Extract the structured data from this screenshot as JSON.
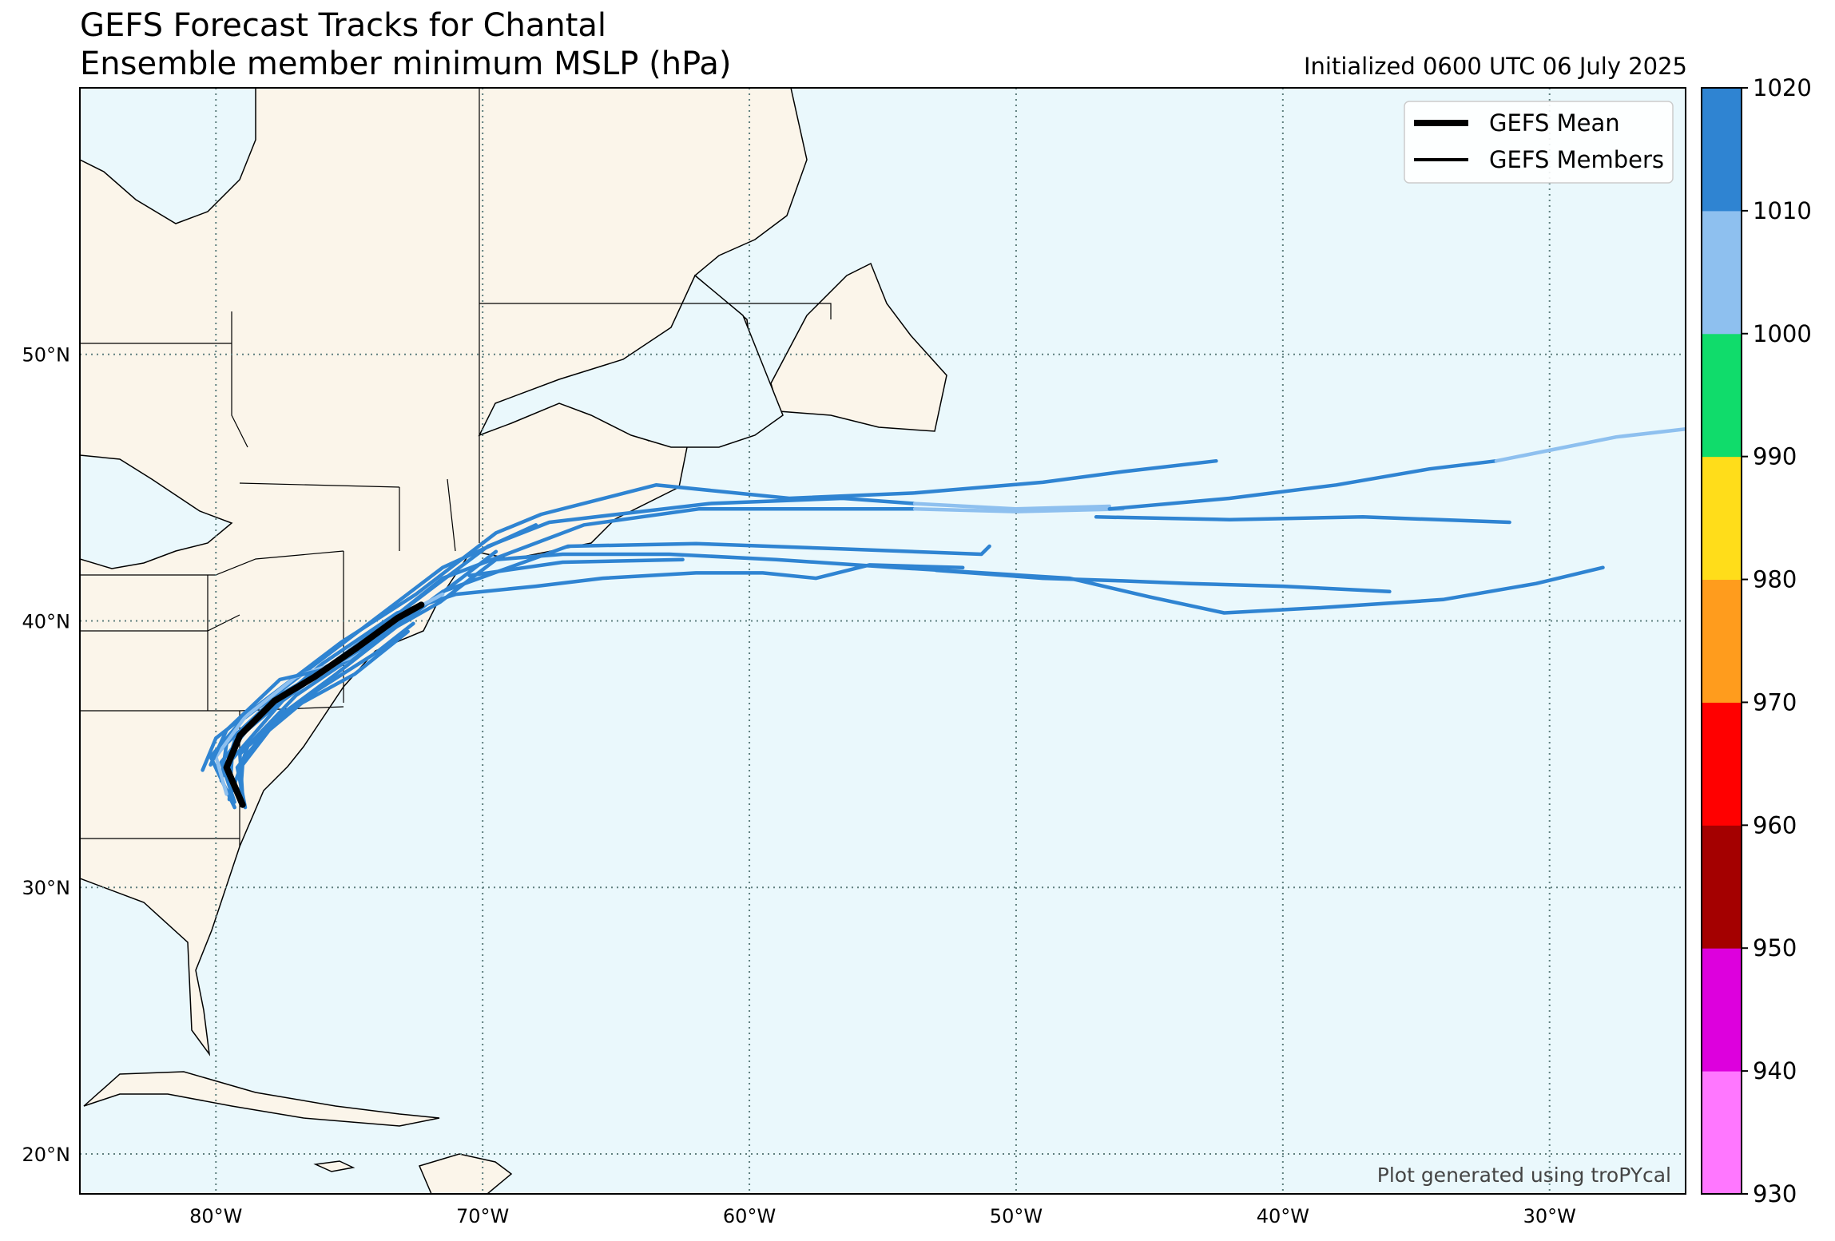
{
  "title": "GEFS Forecast Tracks for Chantal",
  "subtitle": "Ensemble member minimum MSLP (hPa)",
  "init_text": "Initialized 0600 UTC 06 July 2025",
  "credit": "Plot generated using troPYcal",
  "legend": [
    {
      "label": "GEFS Mean"
    },
    {
      "label": "GEFS Members"
    }
  ],
  "colors": {
    "ocean": "#eaf8fc",
    "land": "#fbf5ea",
    "mean_track": "#000000",
    "member_track": "#2f84d2",
    "member_track_weak": "#8ec0ef"
  },
  "map": {
    "lon_range": [
      -85.1,
      -24.9
    ],
    "lat_range": [
      18.5,
      60.0
    ],
    "lat_ticks": [
      {
        "value": 50,
        "label": "50°N"
      },
      {
        "value": 40,
        "label": "40°N"
      },
      {
        "value": 30,
        "label": "30°N"
      },
      {
        "value": 20,
        "label": "20°N"
      }
    ],
    "lon_ticks": [
      {
        "value": -80,
        "label": "80°W"
      },
      {
        "value": -70,
        "label": "70°W"
      },
      {
        "value": -60,
        "label": "60°W"
      },
      {
        "value": -50,
        "label": "50°W"
      },
      {
        "value": -40,
        "label": "40°W"
      },
      {
        "value": -30,
        "label": "30°W"
      }
    ],
    "gridlines": true
  },
  "colorbar": {
    "bounds": [
      930,
      940,
      950,
      960,
      970,
      980,
      990,
      1000,
      1010,
      1020
    ],
    "labels": [
      "1020",
      "1010",
      "1000",
      "990",
      "980",
      "970",
      "960",
      "950",
      "940",
      "930"
    ],
    "colors": [
      "#ff77ff",
      "#dd00dd",
      "#a40000",
      "#ff0000",
      "#ff9c1d",
      "#ffdd1a",
      "#10dc6b",
      "#8ec0ef",
      "#2f84d2"
    ]
  },
  "chart_data": {
    "type": "map-tracks",
    "units": "hPa",
    "mean_track": [
      [
        -79.0,
        33.1
      ],
      [
        -79.6,
        34.5
      ],
      [
        -79.1,
        35.7
      ],
      [
        -77.8,
        37.0
      ],
      [
        -76.3,
        37.9
      ],
      [
        -74.7,
        39.0
      ],
      [
        -73.2,
        40.1
      ],
      [
        -72.3,
        40.6
      ]
    ],
    "members": [
      {
        "points": [
          [
            -79.3,
            33.0
          ],
          [
            -80.2,
            34.9
          ],
          [
            -79.0,
            36.3
          ],
          [
            -76.5,
            38.2
          ],
          [
            -74.0,
            40.1
          ],
          [
            -71.5,
            42.0
          ],
          [
            -68.0,
            43.6
          ]
        ],
        "color": "#2f84d2"
      },
      {
        "points": [
          [
            -78.9,
            33.0
          ],
          [
            -79.2,
            34.5
          ],
          [
            -77.8,
            36.3
          ],
          [
            -75.5,
            38.0
          ],
          [
            -73.2,
            39.8
          ],
          [
            -70.8,
            41.6
          ],
          [
            -69.5,
            42.6
          ]
        ],
        "color": "#2f84d2"
      },
      {
        "points": [
          [
            -80.5,
            34.4
          ],
          [
            -80.0,
            35.6
          ],
          [
            -78.2,
            37.0
          ],
          [
            -75.3,
            39.2
          ],
          [
            -72.5,
            41.0
          ],
          [
            -69.5,
            43.3
          ],
          [
            -67.8,
            44.0
          ],
          [
            -63.5,
            45.1
          ],
          [
            -58.5,
            44.6
          ],
          [
            -53.8,
            44.8
          ],
          [
            -49.0,
            45.2
          ],
          [
            -46.0,
            45.6
          ],
          [
            -42.5,
            46.0
          ]
        ],
        "color": "#2f84d2"
      },
      {
        "points": [
          [
            -79.7,
            34.2
          ],
          [
            -79.3,
            35.5
          ],
          [
            -77.3,
            37.2
          ],
          [
            -74.3,
            39.4
          ],
          [
            -71.8,
            41.3
          ],
          [
            -69.8,
            42.8
          ],
          [
            -67.5,
            43.7
          ],
          [
            -61.5,
            44.4
          ],
          [
            -56.5,
            44.6
          ],
          [
            -53.8,
            44.4
          ]
        ],
        "color": "#2f84d2"
      },
      {
        "points": [
          [
            -53.8,
            44.4
          ],
          [
            -50.0,
            44.2
          ],
          [
            -46.5,
            44.3
          ]
        ],
        "color": "#8ec0ef"
      },
      {
        "points": [
          [
            -79.5,
            33.3
          ],
          [
            -79.4,
            34.8
          ],
          [
            -77.5,
            37.0
          ],
          [
            -74.0,
            39.6
          ],
          [
            -71.5,
            41.6
          ],
          [
            -66.2,
            43.6
          ],
          [
            -61.9,
            44.2
          ],
          [
            -53.8,
            44.2
          ]
        ],
        "color": "#2f84d2"
      },
      {
        "points": [
          [
            -53.8,
            44.2
          ],
          [
            -50.0,
            44.1
          ],
          [
            -46.0,
            44.2
          ]
        ],
        "color": "#8ec0ef"
      },
      {
        "points": [
          [
            -46.5,
            44.2
          ],
          [
            -42.0,
            44.6
          ],
          [
            -38.0,
            45.1
          ],
          [
            -34.5,
            45.7
          ],
          [
            -32.0,
            46.0
          ]
        ],
        "color": "#2f84d2"
      },
      {
        "points": [
          [
            -32.0,
            46.0
          ],
          [
            -29.5,
            46.5
          ],
          [
            -27.5,
            46.9
          ],
          [
            -24.9,
            47.2
          ]
        ],
        "color": "#8ec0ef"
      },
      {
        "points": [
          [
            -79.0,
            33.4
          ],
          [
            -79.1,
            35.0
          ],
          [
            -77.0,
            37.2
          ],
          [
            -74.2,
            39.1
          ],
          [
            -71.5,
            41.1
          ],
          [
            -66.8,
            42.8
          ],
          [
            -62.0,
            42.9
          ],
          [
            -56.5,
            42.7
          ],
          [
            -51.3,
            42.5
          ],
          [
            -51.0,
            42.8
          ]
        ],
        "color": "#2f84d2"
      },
      {
        "points": [
          [
            -79.8,
            34.0
          ],
          [
            -79.6,
            35.4
          ],
          [
            -77.8,
            37.1
          ],
          [
            -74.6,
            39.0
          ],
          [
            -71.6,
            40.7
          ],
          [
            -69.5,
            42.3
          ],
          [
            -67.0,
            42.5
          ],
          [
            -63.0,
            42.5
          ],
          [
            -59.0,
            42.3
          ],
          [
            -54.5,
            42.0
          ],
          [
            -48.0,
            41.6
          ],
          [
            -45.0,
            40.9
          ],
          [
            -42.2,
            40.3
          ],
          [
            -38.5,
            40.5
          ],
          [
            -34.0,
            40.8
          ],
          [
            -30.5,
            41.4
          ],
          [
            -28.0,
            42.0
          ]
        ],
        "color": "#2f84d2"
      },
      {
        "points": [
          [
            -79.3,
            33.2
          ],
          [
            -79.8,
            34.7
          ],
          [
            -78.6,
            36.2
          ],
          [
            -76.0,
            38.4
          ],
          [
            -73.2,
            40.3
          ],
          [
            -71.0,
            41.0
          ],
          [
            -68.0,
            41.3
          ],
          [
            -65.5,
            41.6
          ],
          [
            -62.0,
            41.8
          ],
          [
            -59.5,
            41.8
          ],
          [
            -57.5,
            41.6
          ],
          [
            -55.5,
            42.1
          ],
          [
            -52.0,
            42.0
          ]
        ],
        "color": "#2f84d2"
      },
      {
        "points": [
          [
            -53.0,
            41.9
          ],
          [
            -49.0,
            41.6
          ],
          [
            -46.0,
            41.5
          ],
          [
            -43.5,
            41.4
          ],
          [
            -40.0,
            41.3
          ],
          [
            -36.0,
            41.1
          ]
        ],
        "color": "#2f84d2"
      },
      {
        "points": [
          [
            -70.5,
            41.7
          ],
          [
            -67.0,
            42.2
          ],
          [
            -62.5,
            42.3
          ]
        ],
        "color": "#2f84d2"
      },
      {
        "points": [
          [
            -47.0,
            43.9
          ],
          [
            -42.0,
            43.8
          ],
          [
            -37.0,
            43.9
          ],
          [
            -31.5,
            43.7
          ]
        ],
        "color": "#2f84d2"
      },
      {
        "points": [
          [
            -79.6,
            33.5
          ],
          [
            -80.0,
            34.9
          ],
          [
            -78.9,
            36.4
          ],
          [
            -77.0,
            37.9
          ],
          [
            -75.0,
            38.6
          ],
          [
            -73.0,
            40.2
          ],
          [
            -71.5,
            41.0
          ]
        ],
        "color": "#8ec0ef"
      },
      {
        "points": [
          [
            -79.1,
            33.2
          ],
          [
            -79.0,
            34.6
          ],
          [
            -78.0,
            35.9
          ],
          [
            -76.2,
            37.4
          ],
          [
            -74.0,
            38.8
          ],
          [
            -72.6,
            39.9
          ]
        ],
        "color": "#2f84d2"
      },
      {
        "points": [
          [
            -80.2,
            34.6
          ],
          [
            -79.6,
            35.9
          ],
          [
            -77.6,
            37.8
          ],
          [
            -75.8,
            38.2
          ],
          [
            -74.3,
            39.1
          ],
          [
            -72.8,
            40.3
          ]
        ],
        "color": "#2f84d2"
      },
      {
        "points": [
          [
            -79.4,
            33.6
          ],
          [
            -78.8,
            35.3
          ],
          [
            -77.0,
            36.8
          ],
          [
            -74.8,
            38.0
          ],
          [
            -72.8,
            39.6
          ]
        ],
        "color": "#2f84d2"
      }
    ]
  }
}
